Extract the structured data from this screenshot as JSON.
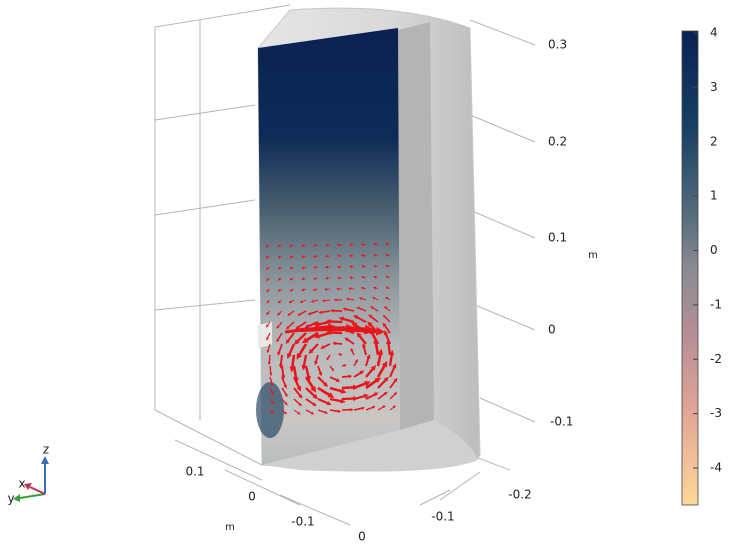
{
  "z_axis": {
    "ticks": [
      "0.3",
      "0.2",
      "0.1",
      "0",
      "-0.1"
    ],
    "unit": "m"
  },
  "x_axis": {
    "ticks": [
      "0.1",
      "0",
      "-0.1"
    ],
    "unit": "m"
  },
  "y_axis": {
    "ticks": [
      "0",
      "-0.1",
      "-0.2"
    ]
  },
  "colorbar": {
    "ticks": [
      "4",
      "3",
      "2",
      "1",
      "0",
      "-1",
      "-2",
      "-3",
      "-4"
    ]
  },
  "triad": {
    "z": "z",
    "x": "x",
    "y": "y"
  }
}
